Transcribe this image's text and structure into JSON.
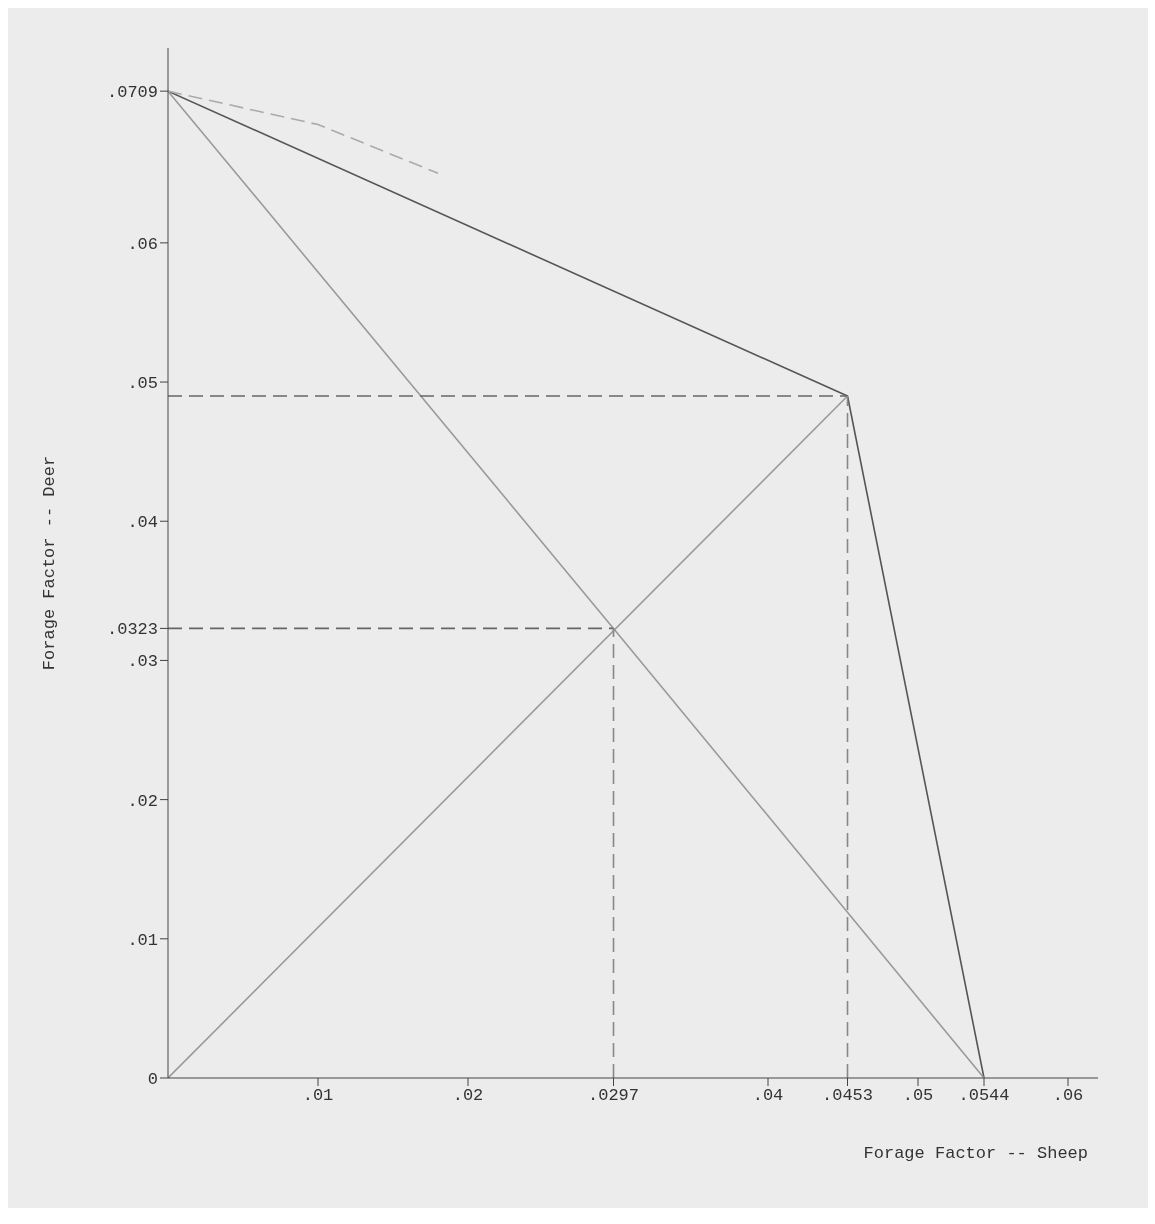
{
  "chart_data": {
    "type": "line",
    "xlabel": "Forage Factor -- Sheep",
    "ylabel": "Forage Factor -- Deer",
    "xlim": [
      0,
      0.062
    ],
    "ylim": [
      0,
      0.074
    ],
    "xticks": [
      {
        "value": 0.01,
        "label": ".01"
      },
      {
        "value": 0.02,
        "label": ".02"
      },
      {
        "value": 0.0297,
        "label": ".0297"
      },
      {
        "value": 0.04,
        "label": ".04"
      },
      {
        "value": 0.0453,
        "label": ".0453"
      },
      {
        "value": 0.05,
        "label": ".05"
      },
      {
        "value": 0.0544,
        "label": ".0544"
      },
      {
        "value": 0.06,
        "label": ".06"
      }
    ],
    "yticks": [
      0,
      {
        "value": 0.01,
        "label": ".01"
      },
      {
        "value": 0.02,
        "label": ".02"
      },
      {
        "value": 0.03,
        "label": ".03"
      },
      {
        "value": 0.0323,
        "label": ".0323"
      },
      {
        "value": 0.04,
        "label": ".04"
      },
      {
        "value": 0.05,
        "label": ".05"
      },
      {
        "value": 0.06,
        "label": ".06"
      },
      {
        "value": 0.0709,
        "label": ".0709"
      }
    ],
    "marker": "none",
    "series": [
      {
        "color": "#555555",
        "line_style": "solid",
        "x": [
          0,
          0.0453,
          0.0544
        ],
        "values": [
          0.0709,
          0.049,
          0
        ]
      },
      {
        "color": "#9a9a9a",
        "line_style": "solid",
        "x": [
          0,
          0.0297,
          0.0544
        ],
        "values": [
          0.0709,
          0.0323,
          0
        ]
      },
      {
        "color": "#9a9a9a",
        "line_style": "solid",
        "x": [
          0,
          0.0453
        ],
        "values": [
          0,
          0.049
        ]
      },
      {
        "color": "#666666",
        "line_style": "dashed",
        "x": [
          0,
          0.0453
        ],
        "values": [
          0.049,
          0.049
        ]
      },
      {
        "color": "#666666",
        "line_style": "dashed",
        "x": [
          0,
          0.0297
        ],
        "values": [
          0.0323,
          0.0323
        ]
      },
      {
        "color": "#888888",
        "line_style": "dashed",
        "x": [
          0.0297,
          0.0297
        ],
        "values": [
          0,
          0.0323
        ]
      },
      {
        "color": "#888888",
        "line_style": "dashed",
        "x": [
          0.0453,
          0.0453
        ],
        "values": [
          0,
          0.049
        ]
      },
      {
        "color": "#aaaaaa",
        "line_style": "dashed",
        "x": [
          0,
          0.01,
          0.018
        ],
        "values": [
          0.0709,
          0.0685,
          0.065
        ]
      }
    ]
  }
}
